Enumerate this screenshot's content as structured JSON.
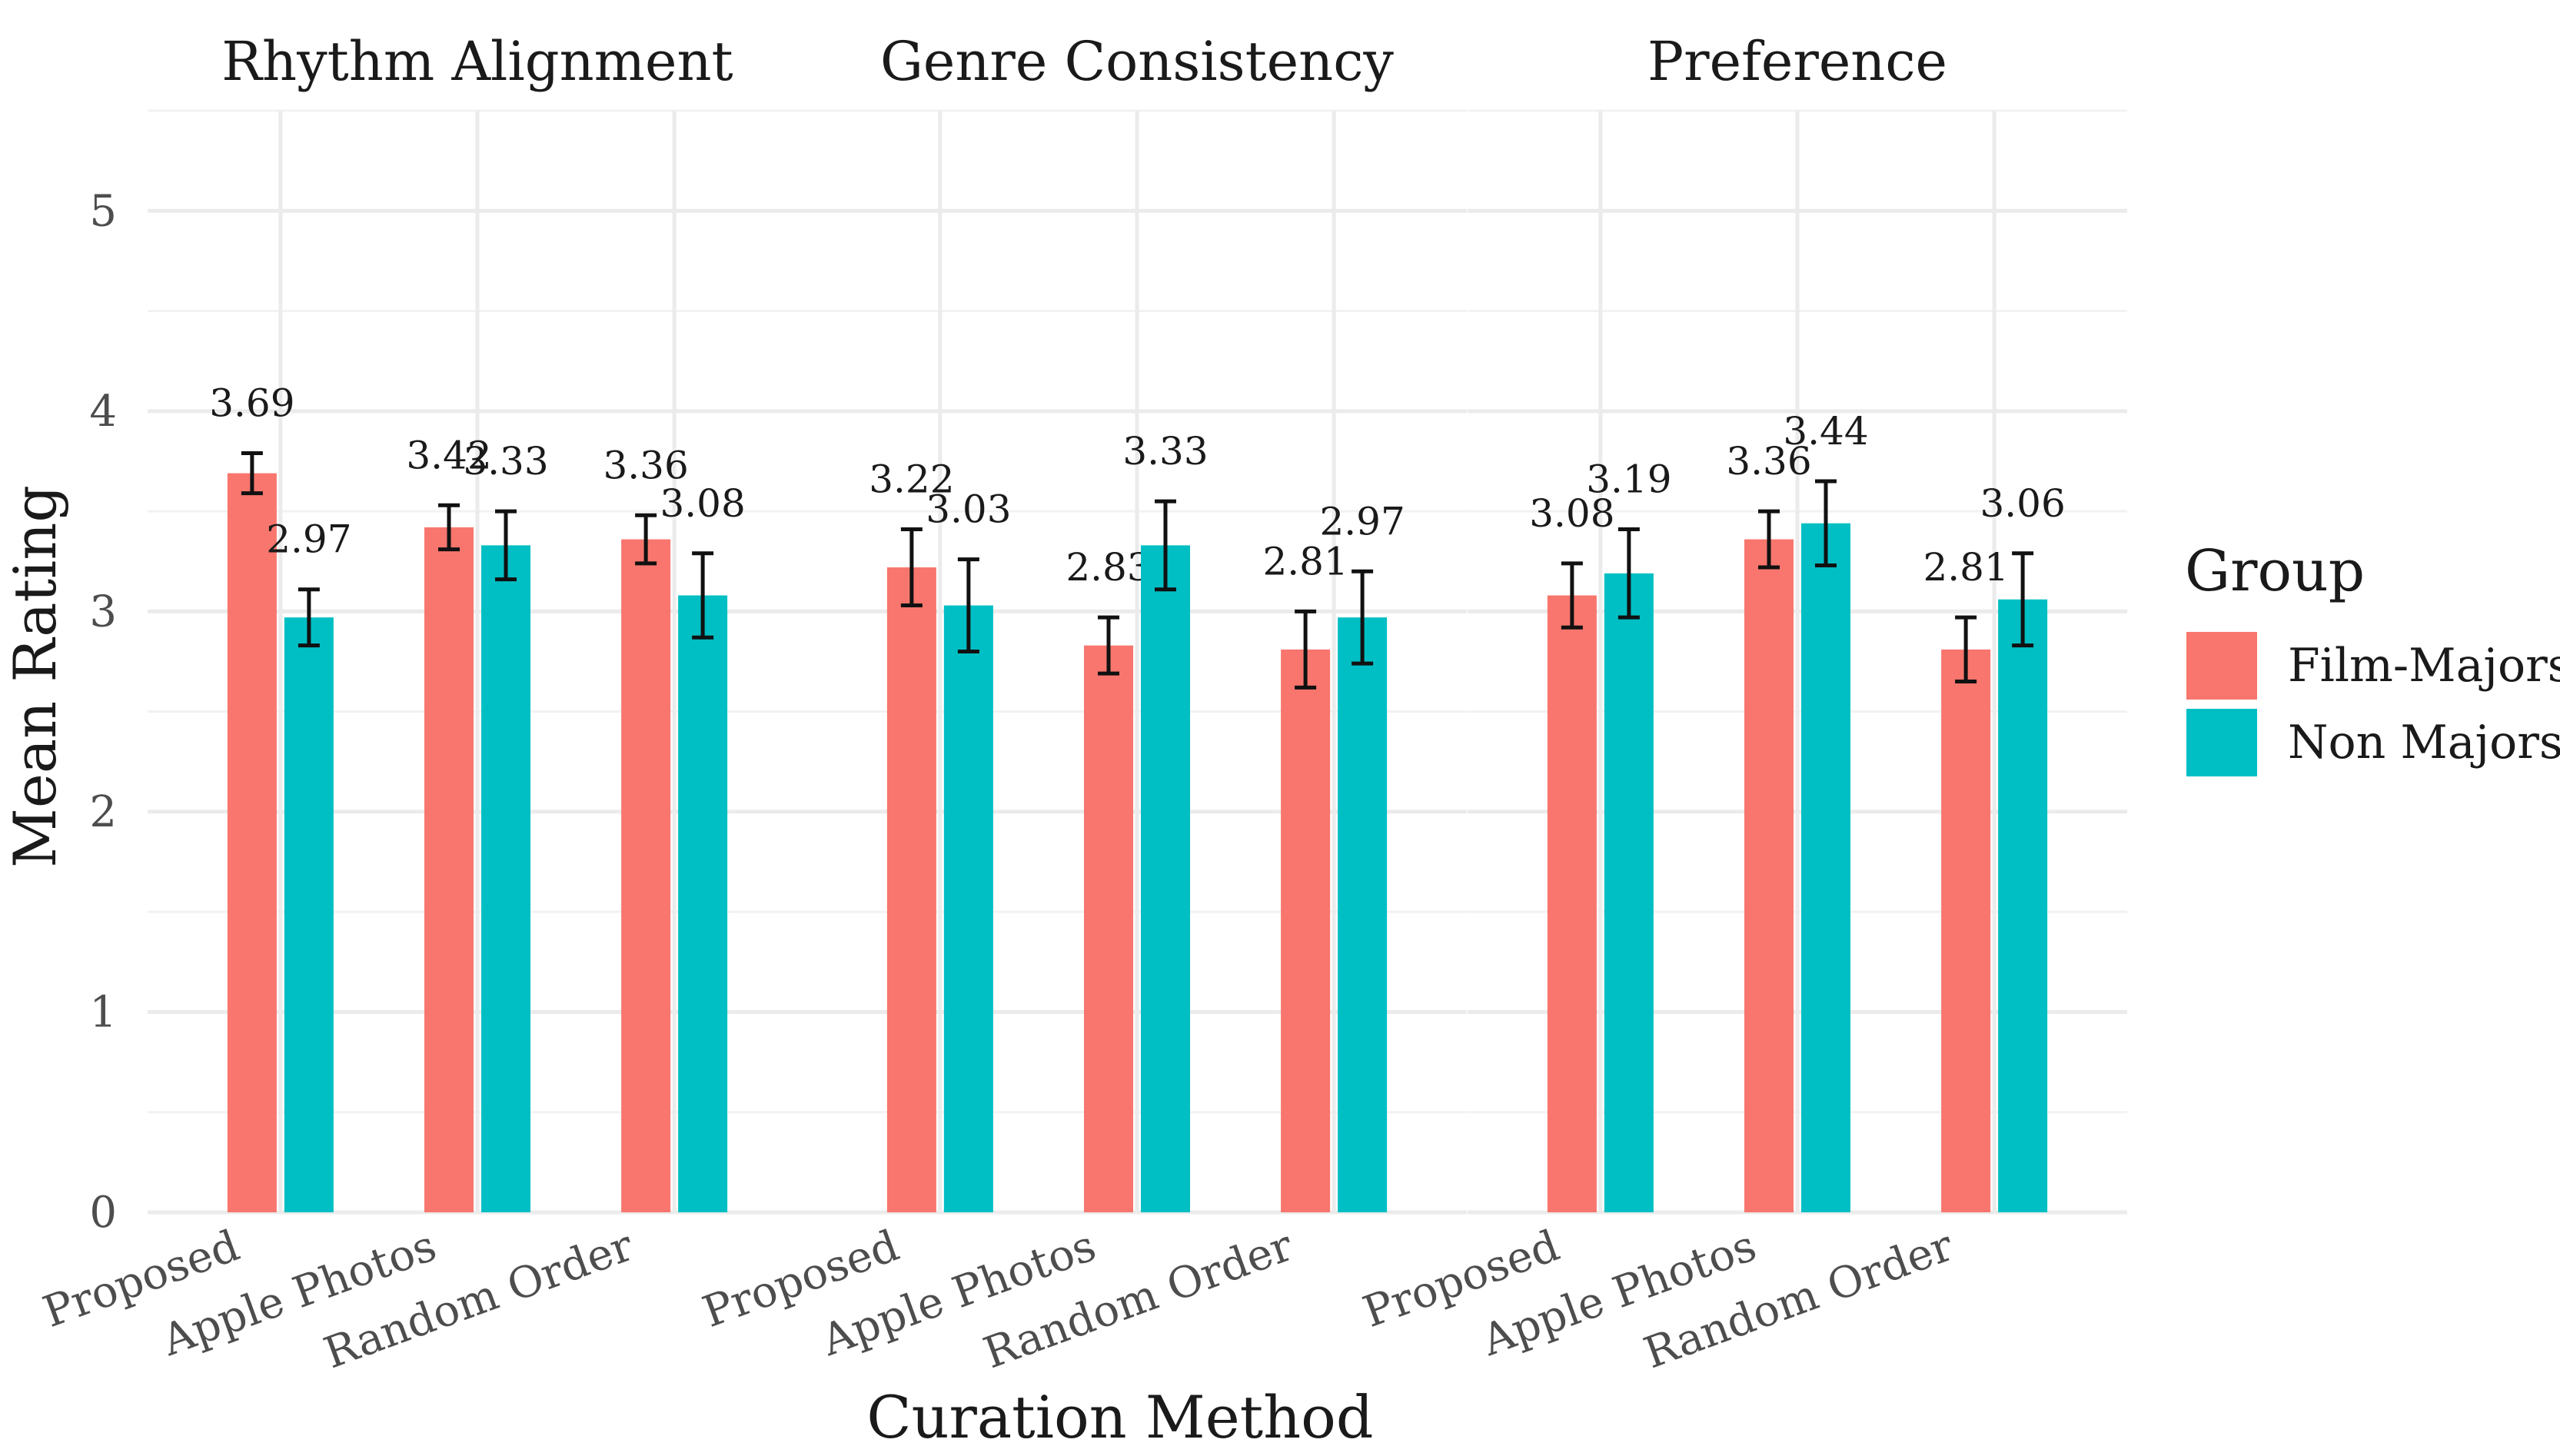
{
  "chart_data": {
    "type": "bar",
    "xlabel": "Curation Method",
    "ylabel": "Mean Rating",
    "ylim": [
      0,
      5.5
    ],
    "yticks": [
      "0",
      "1",
      "2",
      "3",
      "4",
      "5"
    ],
    "categories": [
      "Proposed",
      "Apple Photos",
      "Random Order"
    ],
    "legend": {
      "title": "Group",
      "position": "right",
      "entries": [
        {
          "name": "Film-Majors",
          "color": "#F8766D"
        },
        {
          "name": "Non Majors",
          "color": "#00BFC4"
        }
      ]
    },
    "panels": [
      {
        "title": "Rhythm Alignment",
        "series": [
          {
            "name": "Film-Majors",
            "values": [
              3.69,
              3.42,
              3.36
            ],
            "labels": [
              "3.69",
              "3.42",
              "3.36"
            ],
            "err_low": [
              3.59,
              3.31,
              3.24
            ],
            "err_high": [
              3.79,
              3.53,
              3.48
            ]
          },
          {
            "name": "Non Majors",
            "values": [
              2.97,
              3.33,
              3.08
            ],
            "labels": [
              "2.97",
              "3.33",
              "3.08"
            ],
            "err_low": [
              2.83,
              3.16,
              2.87
            ],
            "err_high": [
              3.11,
              3.5,
              3.29
            ]
          }
        ]
      },
      {
        "title": "Genre Consistency",
        "series": [
          {
            "name": "Film-Majors",
            "values": [
              3.22,
              2.83,
              2.81
            ],
            "labels": [
              "3.22",
              "2.83",
              "2.81"
            ],
            "err_low": [
              3.03,
              2.69,
              2.62
            ],
            "err_high": [
              3.41,
              2.97,
              3.0
            ]
          },
          {
            "name": "Non Majors",
            "values": [
              3.03,
              3.33,
              2.97
            ],
            "labels": [
              "3.03",
              "3.33",
              "2.97"
            ],
            "err_low": [
              2.8,
              3.11,
              2.74
            ],
            "err_high": [
              3.26,
              3.55,
              3.2
            ]
          }
        ]
      },
      {
        "title": "Preference",
        "series": [
          {
            "name": "Film-Majors",
            "values": [
              3.08,
              3.36,
              2.81
            ],
            "labels": [
              "3.08",
              "3.36",
              "2.81"
            ],
            "err_low": [
              2.92,
              3.22,
              2.65
            ],
            "err_high": [
              3.24,
              3.5,
              2.97
            ]
          },
          {
            "name": "Non Majors",
            "values": [
              3.19,
              3.44,
              3.06
            ],
            "labels": [
              "3.19",
              "3.44",
              "3.06"
            ],
            "err_low": [
              2.97,
              3.23,
              2.83
            ],
            "err_high": [
              3.41,
              3.65,
              3.29
            ]
          }
        ]
      }
    ]
  }
}
